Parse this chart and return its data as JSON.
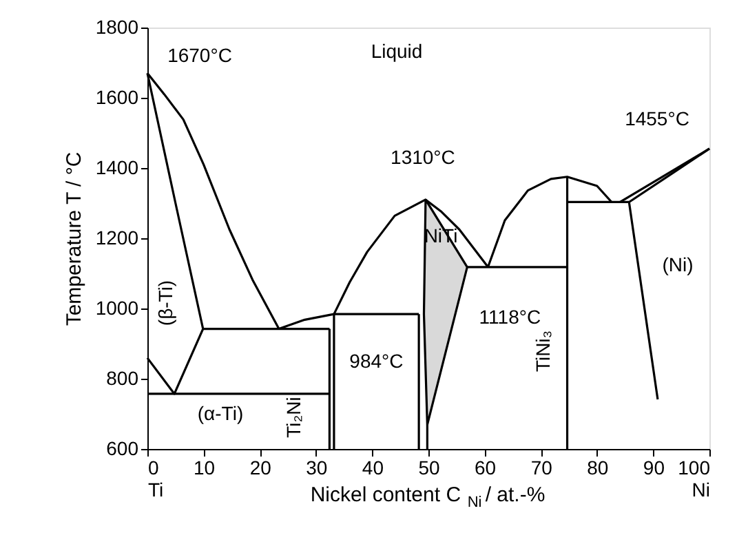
{
  "chart_data": {
    "type": "line",
    "xlabel": "Nickel content C$_{Ni}$ / at.-%",
    "ylabel": "Temperature T / °C",
    "xlim": [
      0,
      100
    ],
    "ylim": [
      600,
      1800
    ],
    "xticks": [
      {
        "value": 0,
        "label": "0\nTi"
      },
      10,
      20,
      30,
      40,
      50,
      60,
      70,
      80,
      90,
      {
        "value": 100,
        "label": "100\nNi"
      }
    ],
    "yticks": [
      600,
      800,
      1000,
      1200,
      1400,
      1600,
      1800
    ],
    "grid": false,
    "marker": "none",
    "line_style": "solid",
    "series": [
      {
        "type": "area",
        "color": "#d9d9d9",
        "x": [
          49.5,
          56.9,
          49.8,
          49.2,
          49.5
        ],
        "values": [
          1310,
          1118,
          669,
          984,
          1310
        ]
      },
      {
        "color": "#000000",
        "x": [
          0,
          3,
          6.4,
          10,
          14.6,
          18.7,
          23.4
        ],
        "values": [
          1670,
          1610,
          1538,
          1410,
          1225,
          1082,
          942
        ]
      },
      {
        "color": "#000000",
        "x": [
          0,
          5,
          9.9
        ],
        "values": [
          1670,
          1300,
          942
        ]
      },
      {
        "color": "#000000",
        "x": [
          9.9,
          32.4
        ],
        "values": [
          942,
          942
        ]
      },
      {
        "color": "#000000",
        "x": [
          23.4,
          28,
          33.2,
          48.3
        ],
        "values": [
          942,
          968,
          984,
          984
        ]
      },
      {
        "color": "#000000",
        "x": [
          32.4,
          32.4
        ],
        "values": [
          600,
          942
        ]
      },
      {
        "color": "#000000",
        "x": [
          33.2,
          33.2
        ],
        "values": [
          600,
          984
        ]
      },
      {
        "color": "#000000",
        "x": [
          48.3,
          48.3
        ],
        "values": [
          600,
          984
        ]
      },
      {
        "color": "#000000",
        "x": [
          49.8,
          49.8
        ],
        "values": [
          600,
          669
        ]
      },
      {
        "color": "#000000",
        "x": [
          33.2,
          36,
          39.1,
          44,
          49.5,
          52.2,
          55.5,
          60.6
        ],
        "values": [
          984,
          1075,
          1161,
          1264,
          1310,
          1277,
          1225,
          1118
        ]
      },
      {
        "color": "#000000",
        "x": [
          56.9,
          74.7
        ],
        "values": [
          1118,
          1118
        ]
      },
      {
        "color": "#000000",
        "x": [
          60.6,
          63.6,
          67.7,
          71.8,
          74.7,
          80,
          82.6
        ],
        "values": [
          1118,
          1251,
          1336,
          1369,
          1375,
          1349,
          1303
        ]
      },
      {
        "color": "#000000",
        "x": [
          74.7,
          74.7
        ],
        "values": [
          600,
          1375
        ]
      },
      {
        "color": "#000000",
        "x": [
          74.7,
          85.7
        ],
        "values": [
          1303,
          1303
        ]
      },
      {
        "color": "#000000",
        "x": [
          84.1,
          100
        ],
        "values": [
          1303,
          1455
        ]
      },
      {
        "color": "#000000",
        "x": [
          85.7,
          100
        ],
        "values": [
          1303,
          1455
        ]
      },
      {
        "color": "#000000",
        "x": [
          85.7,
          90.8
        ],
        "values": [
          1303,
          741
        ]
      },
      {
        "color": "#000000",
        "x": [
          0,
          4.8,
          9.9
        ],
        "values": [
          859,
          757,
          942
        ]
      },
      {
        "color": "#000000",
        "x": [
          0,
          32.4
        ],
        "values": [
          757,
          757
        ]
      }
    ],
    "annotations": [
      {
        "text": "1670°C",
        "x": 0,
        "y": 1670
      },
      "Liquid",
      {
        "text": "1310°C",
        "x": 49.5,
        "y": 1310
      },
      {
        "text": "1455°C",
        "x": 100,
        "y": 1455
      },
      "(β-Ti)",
      "NiTi",
      "(Ni)",
      {
        "text": "1118°C",
        "x": 65,
        "y": 1118
      },
      {
        "text": "984°C",
        "x": 40,
        "y": 984
      },
      "(α-Ti)",
      "Ti₂Ni",
      "TiNi₃"
    ]
  }
}
